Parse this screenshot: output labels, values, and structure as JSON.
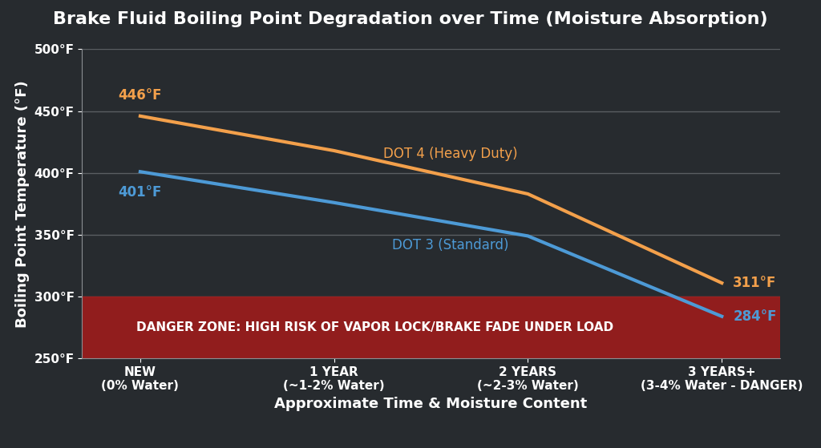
{
  "chart_data": {
    "type": "line",
    "title": "Brake Fluid Boiling Point Degradation over Time (Moisture Absorption)",
    "x_label": "Approximate Time & Moisture Content",
    "y_label": "Boiling Point Temperature (°F)",
    "categories": [
      "NEW\n(0% Water)",
      "1 YEAR\n(~1-2% Water)",
      "2 YEARS\n(~2-3% Water)",
      "3 YEARS+\n(3-4% Water - DANGER)"
    ],
    "series": [
      {
        "name": "DOT 4 (Heavy Duty)",
        "color": "#f3a04b",
        "values": [
          446,
          418,
          383,
          311
        ],
        "value_labels": [
          "446°F",
          null,
          null,
          "311°F"
        ]
      },
      {
        "name": "DOT 3 (Standard)",
        "color": "#4d9ad6",
        "values": [
          401,
          376,
          349,
          284
        ],
        "value_labels": [
          "401°F",
          null,
          null,
          "284°F"
        ]
      }
    ],
    "bands": [
      {
        "from": 250,
        "to": 300,
        "color": "#9e1c1c",
        "label": "DANGER ZONE: HIGH RISK OF VAPOR LOCK/BRAKE FADE UNDER LOAD"
      }
    ],
    "ylim": [
      250,
      500
    ],
    "yticks": [
      {
        "value": 250,
        "label": "250°F"
      },
      {
        "value": 300,
        "label": "300°F"
      },
      {
        "value": 350,
        "label": "350°F"
      },
      {
        "value": 400,
        "label": "400°F"
      },
      {
        "value": 450,
        "label": "450°F"
      },
      {
        "value": 500,
        "label": "500°F"
      }
    ],
    "grid": true
  }
}
